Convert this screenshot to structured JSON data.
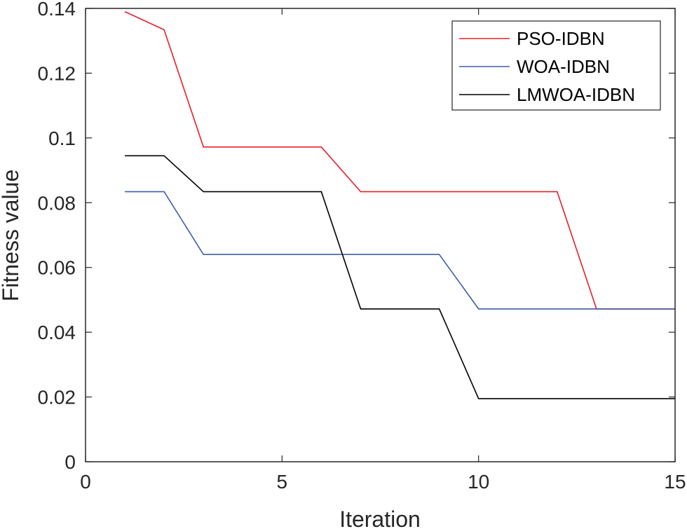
{
  "chart_data": {
    "type": "line",
    "title": "",
    "xlabel": "Iteration",
    "ylabel": "Fitness value",
    "xlim": [
      0,
      15
    ],
    "ylim": [
      0,
      0.14
    ],
    "xticks": [
      0,
      5,
      10,
      15
    ],
    "xtick_labels": [
      "0",
      "5",
      "10",
      "15"
    ],
    "yticks": [
      0,
      0.02,
      0.04,
      0.06,
      0.08,
      0.1,
      0.12,
      0.14
    ],
    "ytick_labels": [
      "0",
      "0.02",
      "0.04",
      "0.06",
      "0.08",
      "0.1",
      "0.12",
      "0.14"
    ],
    "grid": false,
    "legend_position": "top-right",
    "x": [
      1,
      2,
      3,
      4,
      5,
      6,
      7,
      8,
      9,
      10,
      11,
      12,
      13,
      14,
      15
    ],
    "series": [
      {
        "name": "PSO-IDBN",
        "color": "#e8202a",
        "values": [
          0.139,
          0.1334,
          0.0972,
          0.0972,
          0.0972,
          0.0972,
          0.0834,
          0.0834,
          0.0834,
          0.0834,
          0.0834,
          0.0834,
          0.0472,
          0.0472,
          0.0472
        ]
      },
      {
        "name": "WOA-IDBN",
        "color": "#3f5fa8",
        "values": [
          0.0834,
          0.0834,
          0.064,
          0.064,
          0.064,
          0.064,
          0.064,
          0.064,
          0.064,
          0.0472,
          0.0472,
          0.0472,
          0.0472,
          0.0472,
          0.0472
        ]
      },
      {
        "name": "LMWOA-IDBN",
        "color": "#000000",
        "values": [
          0.0945,
          0.0945,
          0.0834,
          0.0834,
          0.0834,
          0.0834,
          0.0472,
          0.0472,
          0.0472,
          0.0195,
          0.0195,
          0.0195,
          0.0195,
          0.0195,
          0.0195
        ]
      }
    ]
  }
}
